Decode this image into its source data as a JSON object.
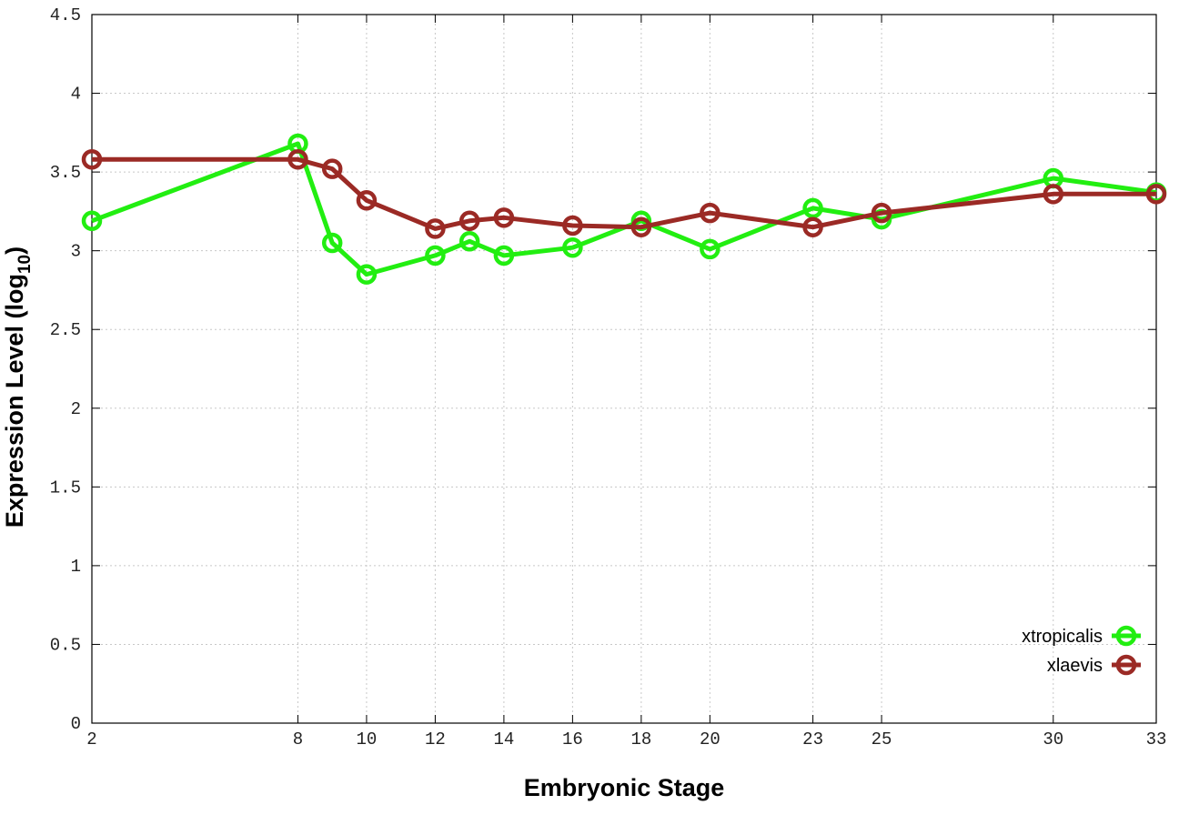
{
  "chart_data": {
    "type": "line",
    "title": "",
    "xlabel": "Embryonic Stage",
    "ylabel_main": "Expression Level (log",
    "ylabel_sub": "10",
    "ylabel_close": ")",
    "x": [
      2,
      8,
      9,
      10,
      12,
      13,
      14,
      16,
      18,
      20,
      23,
      25,
      30,
      33
    ],
    "xlim": [
      2,
      33
    ],
    "ylim": [
      0,
      4.5
    ],
    "x_ticks": [
      2,
      8,
      10,
      12,
      14,
      16,
      18,
      20,
      23,
      25,
      30,
      33
    ],
    "x_tick_labels": [
      "2",
      "8",
      "10",
      "12",
      "14",
      "16",
      "18",
      "20",
      "23",
      "25",
      "30",
      "33"
    ],
    "y_ticks": [
      0,
      0.5,
      1,
      1.5,
      2,
      2.5,
      3,
      3.5,
      4,
      4.5
    ],
    "y_tick_labels": [
      "0",
      "0.5",
      "1",
      "1.5",
      "2",
      "2.5",
      "3",
      "3.5",
      "4",
      "4.5"
    ],
    "grid": true,
    "legend_position": "bottom-right",
    "series": [
      {
        "name": "xtropicalis",
        "color": "#22ee11",
        "values": [
          3.19,
          3.68,
          3.05,
          2.85,
          2.97,
          3.06,
          2.97,
          3.02,
          3.19,
          3.01,
          3.27,
          3.2,
          3.46,
          3.37
        ]
      },
      {
        "name": "xlaevis",
        "color": "#9b2a25",
        "values": [
          3.58,
          3.58,
          3.52,
          3.32,
          3.14,
          3.19,
          3.21,
          3.16,
          3.15,
          3.24,
          3.15,
          3.24,
          3.36,
          3.36
        ]
      }
    ]
  }
}
